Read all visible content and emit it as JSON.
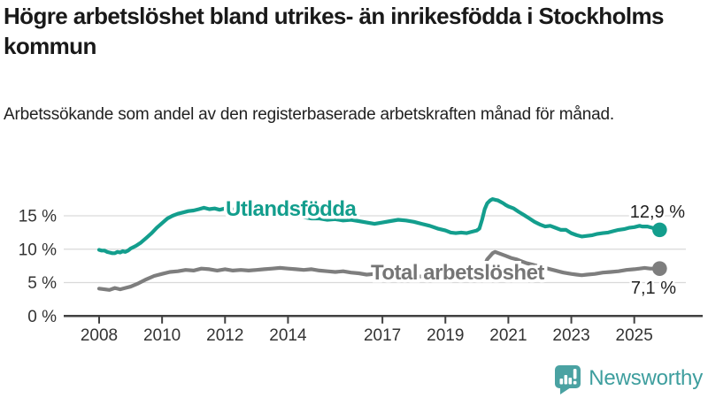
{
  "header": {
    "title": "Högre arbetslöshet bland utrikes- än inrikesfödda i Stockholms kommun",
    "subtitle": "Arbetssökande som andel av den registerbaserade arbetskraften månad för månad."
  },
  "footer": {
    "brand": "Newsworthy",
    "logo_icon": "newsworthy-speech-bubble-barchart-icon"
  },
  "colors": {
    "series_teal": "#139E8D",
    "series_gray": "#7E7E7E",
    "series_gray_label": "#757575",
    "grid": "#D9D9D9",
    "axis": "#414141",
    "tick_label": "#333333",
    "end_label": "#1F1F1F",
    "logo_teal": "#4AA2A2",
    "brand_text": "#3E9E9E",
    "halo": "#FFFFFF"
  },
  "chart_data": {
    "type": "line",
    "title": "Högre arbetslöshet bland utrikes- än inrikesfödda i Stockholms kommun",
    "subtitle": "Arbetssökande som andel av den registerbaserade arbetskraften månad för månad.",
    "x_unit": "year (decimal = month fraction)",
    "ylabel": "",
    "xlabel": "",
    "grid": "horizontal",
    "xticks": [
      2008,
      2010,
      2012,
      2014,
      2017,
      2019,
      2021,
      2023,
      2025
    ],
    "yticks": [
      0,
      5,
      10,
      15
    ],
    "ytick_suffix": " %",
    "xlim": [
      2006.9,
      2026.3
    ],
    "ylim": [
      0,
      19
    ],
    "legend_position": "inline-labels",
    "series": [
      {
        "name": "Utlandsfödda",
        "color": "#139E8D",
        "end_value": 12.9,
        "end_label": "12,9 %",
        "points": [
          [
            2008.0,
            9.9
          ],
          [
            2008.08,
            9.8
          ],
          [
            2008.17,
            9.8
          ],
          [
            2008.25,
            9.6
          ],
          [
            2008.33,
            9.5
          ],
          [
            2008.42,
            9.4
          ],
          [
            2008.5,
            9.4
          ],
          [
            2008.58,
            9.6
          ],
          [
            2008.67,
            9.5
          ],
          [
            2008.75,
            9.7
          ],
          [
            2008.83,
            9.6
          ],
          [
            2008.92,
            9.8
          ],
          [
            2009.0,
            10.1
          ],
          [
            2009.17,
            10.5
          ],
          [
            2009.33,
            11.0
          ],
          [
            2009.5,
            11.7
          ],
          [
            2009.67,
            12.4
          ],
          [
            2009.83,
            13.2
          ],
          [
            2010.0,
            13.9
          ],
          [
            2010.17,
            14.6
          ],
          [
            2010.33,
            15.0
          ],
          [
            2010.5,
            15.3
          ],
          [
            2010.67,
            15.5
          ],
          [
            2010.83,
            15.7
          ],
          [
            2011.0,
            15.8
          ],
          [
            2011.17,
            16.0
          ],
          [
            2011.33,
            16.2
          ],
          [
            2011.5,
            16.0
          ],
          [
            2011.67,
            16.1
          ],
          [
            2011.83,
            15.9
          ],
          [
            2012.0,
            16.1
          ],
          [
            2012.17,
            15.9
          ],
          [
            2012.33,
            16.0
          ],
          [
            2012.5,
            15.8
          ],
          [
            2012.67,
            15.9
          ],
          [
            2012.83,
            15.7
          ],
          [
            2013.0,
            15.6
          ],
          [
            2013.25,
            15.5
          ],
          [
            2013.5,
            15.3
          ],
          [
            2013.75,
            15.2
          ],
          [
            2014.0,
            15.1
          ],
          [
            2014.25,
            15.0
          ],
          [
            2014.5,
            14.8
          ],
          [
            2014.75,
            14.6
          ],
          [
            2015.0,
            14.6
          ],
          [
            2015.25,
            14.4
          ],
          [
            2015.5,
            14.5
          ],
          [
            2015.75,
            14.3
          ],
          [
            2016.0,
            14.4
          ],
          [
            2016.25,
            14.2
          ],
          [
            2016.5,
            14.0
          ],
          [
            2016.75,
            13.8
          ],
          [
            2017.0,
            14.0
          ],
          [
            2017.25,
            14.2
          ],
          [
            2017.5,
            14.4
          ],
          [
            2017.75,
            14.3
          ],
          [
            2018.0,
            14.1
          ],
          [
            2018.25,
            13.8
          ],
          [
            2018.5,
            13.5
          ],
          [
            2018.75,
            13.1
          ],
          [
            2019.0,
            12.8
          ],
          [
            2019.17,
            12.5
          ],
          [
            2019.33,
            12.4
          ],
          [
            2019.5,
            12.5
          ],
          [
            2019.67,
            12.4
          ],
          [
            2019.83,
            12.6
          ],
          [
            2020.0,
            12.8
          ],
          [
            2020.08,
            13.1
          ],
          [
            2020.17,
            14.5
          ],
          [
            2020.25,
            16.0
          ],
          [
            2020.33,
            16.9
          ],
          [
            2020.42,
            17.3
          ],
          [
            2020.5,
            17.5
          ],
          [
            2020.58,
            17.4
          ],
          [
            2020.67,
            17.3
          ],
          [
            2020.75,
            17.1
          ],
          [
            2020.83,
            16.9
          ],
          [
            2020.92,
            16.6
          ],
          [
            2021.0,
            16.4
          ],
          [
            2021.17,
            16.1
          ],
          [
            2021.33,
            15.6
          ],
          [
            2021.5,
            15.1
          ],
          [
            2021.67,
            14.6
          ],
          [
            2021.83,
            14.1
          ],
          [
            2022.0,
            13.7
          ],
          [
            2022.17,
            13.4
          ],
          [
            2022.33,
            13.5
          ],
          [
            2022.5,
            13.2
          ],
          [
            2022.67,
            12.9
          ],
          [
            2022.83,
            12.9
          ],
          [
            2023.0,
            12.4
          ],
          [
            2023.17,
            12.1
          ],
          [
            2023.33,
            11.9
          ],
          [
            2023.5,
            12.0
          ],
          [
            2023.67,
            12.1
          ],
          [
            2023.83,
            12.3
          ],
          [
            2024.0,
            12.4
          ],
          [
            2024.17,
            12.5
          ],
          [
            2024.33,
            12.7
          ],
          [
            2024.5,
            12.9
          ],
          [
            2024.67,
            13.0
          ],
          [
            2024.83,
            13.2
          ],
          [
            2025.0,
            13.3
          ],
          [
            2025.17,
            13.5
          ],
          [
            2025.25,
            13.4
          ],
          [
            2025.42,
            13.4
          ],
          [
            2025.58,
            13.2
          ],
          [
            2025.75,
            12.9
          ]
        ]
      },
      {
        "name": "Total arbetslöshet",
        "color": "#7E7E7E",
        "end_value": 7.1,
        "end_label": "7,1 %",
        "points": [
          [
            2008.0,
            4.1
          ],
          [
            2008.17,
            4.0
          ],
          [
            2008.33,
            3.9
          ],
          [
            2008.5,
            4.2
          ],
          [
            2008.67,
            4.0
          ],
          [
            2008.83,
            4.2
          ],
          [
            2009.0,
            4.4
          ],
          [
            2009.25,
            4.9
          ],
          [
            2009.5,
            5.5
          ],
          [
            2009.75,
            6.0
          ],
          [
            2010.0,
            6.3
          ],
          [
            2010.25,
            6.6
          ],
          [
            2010.5,
            6.7
          ],
          [
            2010.75,
            6.9
          ],
          [
            2011.0,
            6.8
          ],
          [
            2011.25,
            7.1
          ],
          [
            2011.5,
            7.0
          ],
          [
            2011.75,
            6.8
          ],
          [
            2012.0,
            7.0
          ],
          [
            2012.25,
            6.8
          ],
          [
            2012.5,
            6.9
          ],
          [
            2012.75,
            6.8
          ],
          [
            2013.0,
            6.9
          ],
          [
            2013.25,
            7.0
          ],
          [
            2013.5,
            7.1
          ],
          [
            2013.75,
            7.2
          ],
          [
            2014.0,
            7.1
          ],
          [
            2014.25,
            7.0
          ],
          [
            2014.5,
            6.9
          ],
          [
            2014.75,
            7.0
          ],
          [
            2015.0,
            6.8
          ],
          [
            2015.25,
            6.7
          ],
          [
            2015.5,
            6.6
          ],
          [
            2015.75,
            6.7
          ],
          [
            2016.0,
            6.5
          ],
          [
            2016.25,
            6.4
          ],
          [
            2016.5,
            6.2
          ],
          [
            2016.75,
            6.3
          ],
          [
            2017.0,
            6.2
          ],
          [
            2017.25,
            6.1
          ],
          [
            2017.5,
            6.2
          ],
          [
            2017.75,
            6.1
          ],
          [
            2018.0,
            6.0
          ],
          [
            2018.25,
            5.9
          ],
          [
            2018.5,
            5.8
          ],
          [
            2018.75,
            5.9
          ],
          [
            2019.0,
            5.8
          ],
          [
            2019.25,
            5.9
          ],
          [
            2019.5,
            5.8
          ],
          [
            2019.75,
            6.0
          ],
          [
            2020.0,
            6.1
          ],
          [
            2020.17,
            6.7
          ],
          [
            2020.33,
            8.5
          ],
          [
            2020.5,
            9.4
          ],
          [
            2020.58,
            9.6
          ],
          [
            2020.75,
            9.3
          ],
          [
            2020.92,
            9.0
          ],
          [
            2021.08,
            8.7
          ],
          [
            2021.25,
            8.5
          ],
          [
            2021.42,
            8.2
          ],
          [
            2021.58,
            7.9
          ],
          [
            2021.75,
            7.7
          ],
          [
            2022.0,
            7.4
          ],
          [
            2022.25,
            7.1
          ],
          [
            2022.5,
            6.8
          ],
          [
            2022.75,
            6.5
          ],
          [
            2023.0,
            6.3
          ],
          [
            2023.17,
            6.2
          ],
          [
            2023.33,
            6.1
          ],
          [
            2023.5,
            6.2
          ],
          [
            2023.75,
            6.3
          ],
          [
            2024.0,
            6.5
          ],
          [
            2024.25,
            6.6
          ],
          [
            2024.5,
            6.7
          ],
          [
            2024.75,
            6.9
          ],
          [
            2025.0,
            7.0
          ],
          [
            2025.17,
            7.1
          ],
          [
            2025.33,
            7.2
          ],
          [
            2025.5,
            7.1
          ],
          [
            2025.75,
            7.1
          ]
        ]
      }
    ]
  }
}
